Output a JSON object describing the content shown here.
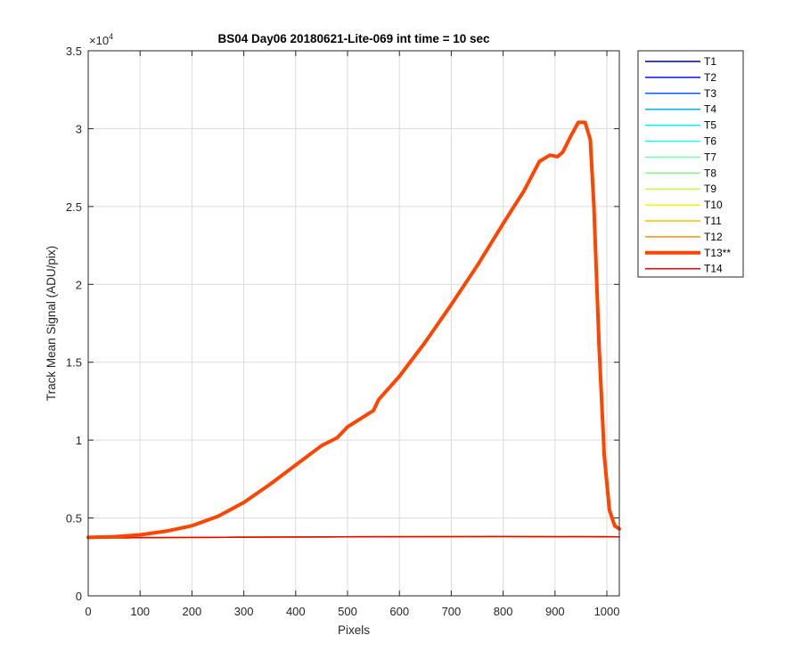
{
  "chart_data": {
    "type": "line",
    "title": "BS04 Day06 20180621-Lite-069 int time = 10 sec",
    "xlabel": "Pixels",
    "ylabel": "Track Mean Signal (ADU/pix)",
    "y_exponent_label": "×10",
    "y_exponent_power": "4",
    "y_scale_factor": 10000,
    "xlim": [
      0,
      1024
    ],
    "ylim": [
      0,
      35000
    ],
    "xticks": [
      0,
      100,
      200,
      300,
      400,
      500,
      600,
      700,
      800,
      900,
      1000
    ],
    "xtick_labels": [
      "0",
      "100",
      "200",
      "300",
      "400",
      "500",
      "600",
      "700",
      "800",
      "900",
      "1000"
    ],
    "yticks": [
      0,
      5000,
      10000,
      15000,
      20000,
      25000,
      30000,
      35000
    ],
    "ytick_labels": [
      "0",
      "0.5",
      "1",
      "1.5",
      "2",
      "2.5",
      "3",
      "3.5"
    ],
    "grid": true,
    "legend_position": "outside-top-right",
    "series": [
      {
        "name": "T1",
        "color": "#00008f",
        "width": 1.5,
        "x": [
          0,
          200,
          400,
          600,
          800,
          1024
        ],
        "y": [
          3720,
          3750,
          3780,
          3800,
          3810,
          3790
        ]
      },
      {
        "name": "T2",
        "color": "#0010ff",
        "width": 1.5,
        "x": [
          0,
          200,
          400,
          600,
          800,
          1024
        ],
        "y": [
          3720,
          3750,
          3780,
          3800,
          3810,
          3790
        ]
      },
      {
        "name": "T3",
        "color": "#005fff",
        "width": 1.5,
        "x": [
          0,
          200,
          400,
          600,
          800,
          1024
        ],
        "y": [
          3720,
          3750,
          3780,
          3800,
          3810,
          3790
        ]
      },
      {
        "name": "T4",
        "color": "#00afff",
        "width": 1.5,
        "x": [
          0,
          200,
          400,
          600,
          800,
          1024
        ],
        "y": [
          3720,
          3750,
          3780,
          3800,
          3810,
          3790
        ]
      },
      {
        "name": "T5",
        "color": "#00f0ff",
        "width": 1.5,
        "x": [
          0,
          200,
          400,
          600,
          800,
          1024
        ],
        "y": [
          3720,
          3750,
          3780,
          3800,
          3810,
          3790
        ]
      },
      {
        "name": "T6",
        "color": "#20ffdf",
        "width": 1.5,
        "x": [
          0,
          200,
          400,
          600,
          800,
          1024
        ],
        "y": [
          3720,
          3750,
          3780,
          3800,
          3810,
          3790
        ]
      },
      {
        "name": "T7",
        "color": "#70ffaf",
        "width": 1.5,
        "x": [
          0,
          200,
          400,
          600,
          800,
          1024
        ],
        "y": [
          3720,
          3750,
          3780,
          3800,
          3810,
          3790
        ]
      },
      {
        "name": "T8",
        "color": "#80ff80",
        "width": 1.5,
        "x": [
          0,
          200,
          400,
          600,
          800,
          1024
        ],
        "y": [
          3720,
          3750,
          3780,
          3800,
          3810,
          3790
        ]
      },
      {
        "name": "T9",
        "color": "#bfff40",
        "width": 1.5,
        "x": [
          0,
          200,
          400,
          600,
          800,
          1024
        ],
        "y": [
          3720,
          3750,
          3780,
          3800,
          3810,
          3790
        ]
      },
      {
        "name": "T10",
        "color": "#fff000",
        "width": 1.5,
        "x": [
          0,
          200,
          400,
          600,
          800,
          1024
        ],
        "y": [
          3720,
          3750,
          3780,
          3800,
          3810,
          3790
        ]
      },
      {
        "name": "T11",
        "color": "#ffbf00",
        "width": 1.5,
        "x": [
          0,
          200,
          400,
          600,
          800,
          1024
        ],
        "y": [
          3720,
          3750,
          3780,
          3800,
          3810,
          3790
        ]
      },
      {
        "name": "T12",
        "color": "#ff8f00",
        "width": 1.5,
        "x": [
          0,
          200,
          400,
          600,
          800,
          1024
        ],
        "y": [
          3720,
          3750,
          3780,
          3800,
          3810,
          3790
        ]
      },
      {
        "name": "T13**",
        "color": "#ff4500",
        "width": 4,
        "x": [
          0,
          50,
          100,
          150,
          200,
          250,
          300,
          350,
          400,
          450,
          480,
          500,
          550,
          560,
          600,
          650,
          700,
          750,
          800,
          840,
          870,
          890,
          905,
          915,
          930,
          945,
          958,
          968,
          975,
          985,
          995,
          1005,
          1015,
          1024
        ],
        "y": [
          3750,
          3800,
          3920,
          4150,
          4500,
          5100,
          6000,
          7150,
          8400,
          9650,
          10150,
          10850,
          11900,
          12600,
          14100,
          16300,
          18700,
          21200,
          23900,
          26000,
          27900,
          28300,
          28200,
          28500,
          29500,
          30400,
          30400,
          29300,
          25000,
          16000,
          9000,
          5500,
          4500,
          4300
        ]
      },
      {
        "name": "T14",
        "color": "#ee0000",
        "width": 1.5,
        "x": [
          0,
          200,
          400,
          600,
          800,
          1024
        ],
        "y": [
          3720,
          3750,
          3780,
          3800,
          3810,
          3790
        ]
      }
    ]
  }
}
